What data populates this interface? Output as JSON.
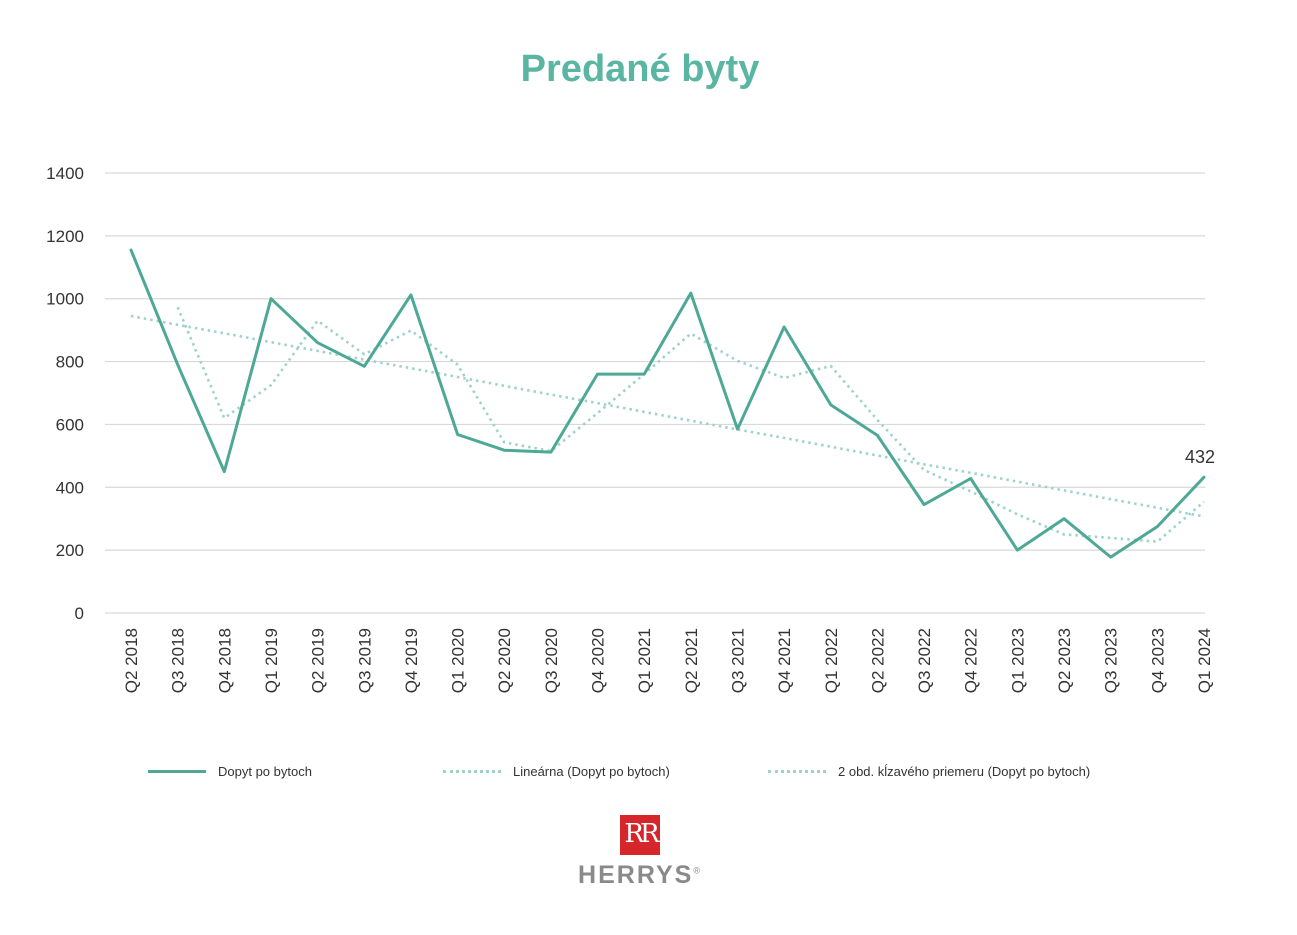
{
  "title": "Predané byty",
  "chart_data": {
    "type": "line",
    "title": "Predané byty",
    "categories": [
      "Q2 2018",
      "Q3 2018",
      "Q4 2018",
      "Q1 2019",
      "Q2 2019",
      "Q3 2019",
      "Q4 2019",
      "Q1 2020",
      "Q2 2020",
      "Q3 2020",
      "Q4 2020",
      "Q1 2021",
      "Q2 2021",
      "Q3 2021",
      "Q4 2021",
      "Q1 2022",
      "Q2 2022",
      "Q3 2022",
      "Q4 2022",
      "Q1 2023",
      "Q2 2023",
      "Q3 2023",
      "Q4 2023",
      "Q1 2024"
    ],
    "ylim": [
      0,
      1400
    ],
    "yticks": [
      0,
      200,
      400,
      600,
      800,
      1000,
      1200,
      1400
    ],
    "grid": true,
    "legend_position": "bottom",
    "series": [
      {
        "name": "Dopyt po bytoch",
        "style": "solid",
        "color": "#4ea896",
        "values": [
          1155,
          790,
          450,
          1000,
          860,
          785,
          1012,
          568,
          518,
          512,
          760,
          760,
          1018,
          585,
          910,
          662,
          565,
          345,
          428,
          200,
          300,
          178,
          275,
          432
        ]
      },
      {
        "name": "Lineárna (Dopyt po bytoch)",
        "style": "dotted",
        "color": "#9fd3c8",
        "values": [
          945,
          917,
          890,
          862,
          834,
          806,
          779,
          751,
          723,
          695,
          668,
          640,
          612,
          584,
          557,
          529,
          501,
          473,
          446,
          418,
          390,
          362,
          335,
          307
        ]
      },
      {
        "name": "2 obd. kĺzavého priemeru (Dopyt po bytoch)",
        "style": "dotted",
        "color": "#9fd3c8",
        "values": [
          null,
          973,
          620,
          725,
          930,
          823,
          899,
          790,
          543,
          515,
          636,
          760,
          889,
          802,
          748,
          786,
          614,
          455,
          387,
          314,
          250,
          239,
          227,
          354
        ]
      }
    ],
    "annotations": [
      {
        "category": "Q1 2024",
        "text": "432"
      }
    ]
  },
  "logo": {
    "mark": "RR",
    "text": "HERRYS",
    "registered": "®"
  }
}
